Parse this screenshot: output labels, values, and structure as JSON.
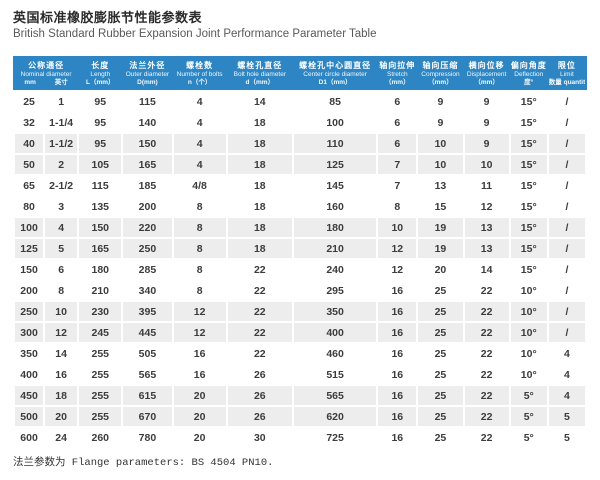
{
  "theme": {
    "accent_blue": "#2d86c3",
    "stripe_gray": "#ededed",
    "header_text": "#ffffff",
    "body_text": "#3c3c3c"
  },
  "header": {
    "title_zh": "英国标准橡胶膨胀节性能参数表",
    "title_en": "British Standard Rubber Expansion Joint Performance Parameter Table"
  },
  "table": {
    "columns": [
      {
        "zh": "公称通径",
        "en": "Nominal diameter",
        "units": [
          "mm",
          "英寸"
        ],
        "colspan": 2
      },
      {
        "zh": "长度",
        "en": "Length",
        "unit": "L（mm）"
      },
      {
        "zh": "法兰外径",
        "en": "Outer diameter",
        "unit": "D(mm)"
      },
      {
        "zh": "螺栓数",
        "en": "Number of bolts",
        "unit": "n（个）"
      },
      {
        "zh": "螺栓孔直径",
        "en": "Bolt hole diameter",
        "unit": "d（mm）"
      },
      {
        "zh": "螺栓孔中心圆直径",
        "en": "Center circle diameter",
        "unit": "D1（mm）"
      },
      {
        "zh": "轴向拉伸",
        "en": "Stretch",
        "unit": "（mm）"
      },
      {
        "zh": "轴向压缩",
        "en": "Compression",
        "unit": "（mm）"
      },
      {
        "zh": "横向位移",
        "en": "Displacement",
        "unit": "（mm）"
      },
      {
        "zh": "偏向角度",
        "en": "Deflection",
        "unit": "度°"
      },
      {
        "zh": "限位",
        "en": "Limit",
        "unit": "数量 quantity"
      }
    ],
    "rows": [
      [
        "25",
        "1",
        "95",
        "115",
        "4",
        "14",
        "85",
        "6",
        "9",
        "9",
        "15°",
        "/"
      ],
      [
        "32",
        "1-1/4",
        "95",
        "140",
        "4",
        "18",
        "100",
        "6",
        "9",
        "9",
        "15°",
        "/"
      ],
      [
        "40",
        "1-1/2",
        "95",
        "150",
        "4",
        "18",
        "110",
        "6",
        "10",
        "9",
        "15°",
        "/"
      ],
      [
        "50",
        "2",
        "105",
        "165",
        "4",
        "18",
        "125",
        "7",
        "10",
        "10",
        "15°",
        "/"
      ],
      [
        "65",
        "2-1/2",
        "115",
        "185",
        "4/8",
        "18",
        "145",
        "7",
        "13",
        "11",
        "15°",
        "/"
      ],
      [
        "80",
        "3",
        "135",
        "200",
        "8",
        "18",
        "160",
        "8",
        "15",
        "12",
        "15°",
        "/"
      ],
      [
        "100",
        "4",
        "150",
        "220",
        "8",
        "18",
        "180",
        "10",
        "19",
        "13",
        "15°",
        "/"
      ],
      [
        "125",
        "5",
        "165",
        "250",
        "8",
        "18",
        "210",
        "12",
        "19",
        "13",
        "15°",
        "/"
      ],
      [
        "150",
        "6",
        "180",
        "285",
        "8",
        "22",
        "240",
        "12",
        "20",
        "14",
        "15°",
        "/"
      ],
      [
        "200",
        "8",
        "210",
        "340",
        "8",
        "22",
        "295",
        "16",
        "25",
        "22",
        "10°",
        "/"
      ],
      [
        "250",
        "10",
        "230",
        "395",
        "12",
        "22",
        "350",
        "16",
        "25",
        "22",
        "10°",
        "/"
      ],
      [
        "300",
        "12",
        "245",
        "445",
        "12",
        "22",
        "400",
        "16",
        "25",
        "22",
        "10°",
        "/"
      ],
      [
        "350",
        "14",
        "255",
        "505",
        "16",
        "22",
        "460",
        "16",
        "25",
        "22",
        "10°",
        "4"
      ],
      [
        "400",
        "16",
        "255",
        "565",
        "16",
        "26",
        "515",
        "16",
        "25",
        "22",
        "10°",
        "4"
      ],
      [
        "450",
        "18",
        "255",
        "615",
        "20",
        "26",
        "565",
        "16",
        "25",
        "22",
        "5°",
        "4"
      ],
      [
        "500",
        "20",
        "255",
        "670",
        "20",
        "26",
        "620",
        "16",
        "25",
        "22",
        "5°",
        "5"
      ],
      [
        "600",
        "24",
        "260",
        "780",
        "20",
        "30",
        "725",
        "16",
        "25",
        "22",
        "5°",
        "5"
      ]
    ]
  },
  "footer": {
    "note": "法兰参数为 Flange parameters: BS 4504 PN10."
  }
}
